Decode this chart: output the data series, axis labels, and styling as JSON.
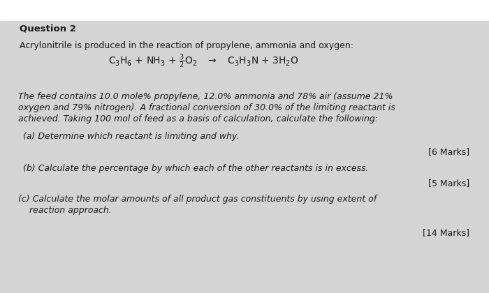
{
  "background_color": "#d8d8d8",
  "top_white": "#f5f5f5",
  "title": "Question 2",
  "intro_line": "Acrylonitrile is produced in the reaction of propylene, ammonia and oxygen:",
  "body_text_1": "The feed contains 10.0 mole% propylene, 12.0% ammonia and 78% air (assume 21%",
  "body_text_2": "oxygen and 79% nitrogen). A fractional conversion of 30.0% of the limiting reactant is",
  "body_text_3": "achieved. Taking 100 mol of feed as a basis of calculation, calculate the following:",
  "part_a_text": "(a) Determine which reactant is limiting and why.",
  "marks_a": "[6 Marks]",
  "part_b_text": "(b) Calculate the percentage by which each of the other reactants is in excess.",
  "marks_b": "[5 Marks]",
  "part_c_text_1": "(c) Calculate the molar amounts of all product gas constituents by using extent of",
  "part_c_text_2": "    reaction approach.",
  "marks_c": "[14 Marks]",
  "text_color": "#1a1a1a",
  "title_fontsize": 9.5,
  "body_fontsize": 9.0,
  "eq_fontsize": 10.0
}
